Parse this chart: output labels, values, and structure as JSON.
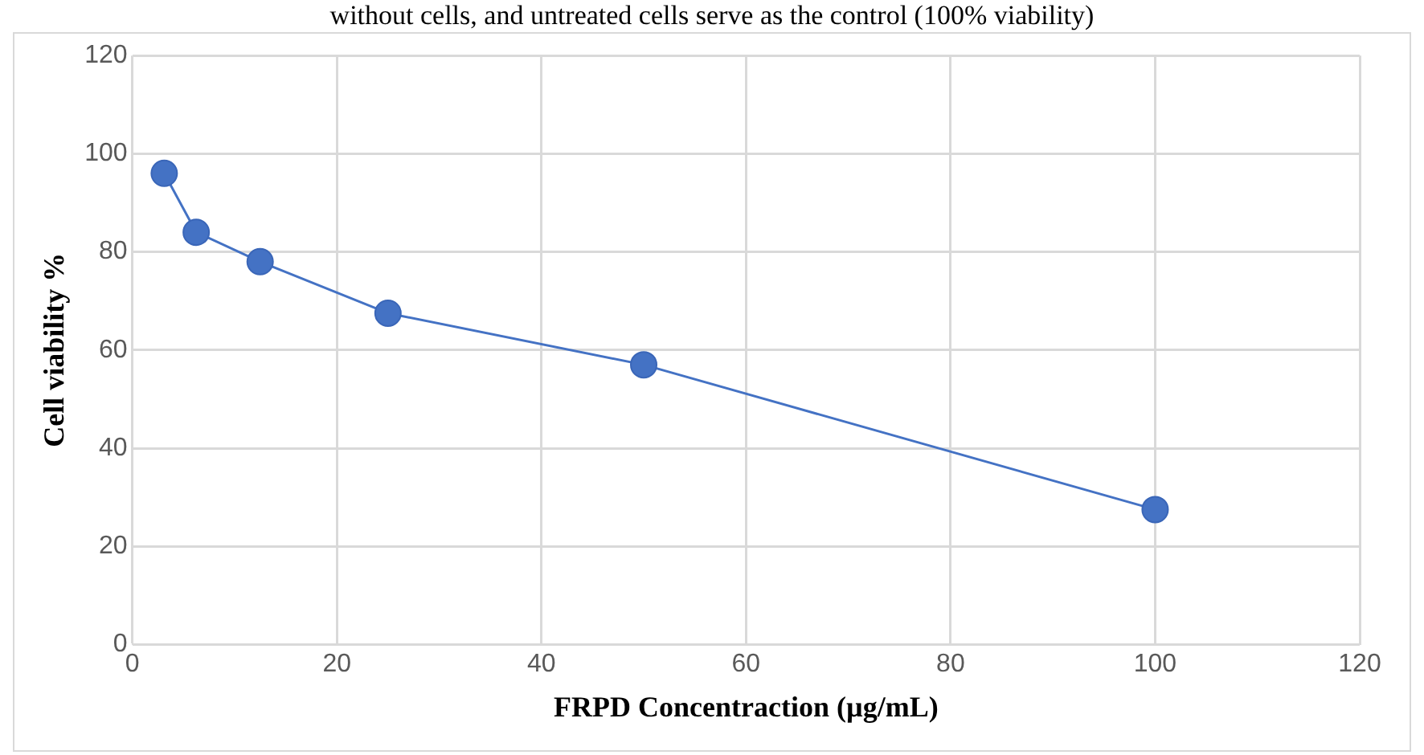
{
  "chart_data": {
    "type": "line",
    "title": "without cells, and untreated cells serve as the control (100% viability)",
    "xlabel": "FRPD Concentraction (µg/mL)",
    "ylabel": "Cell viability %",
    "x": [
      3.125,
      6.25,
      12.5,
      25,
      50,
      100
    ],
    "series": [
      {
        "color": "#4472c4",
        "values": [
          96,
          84,
          78,
          67.5,
          57,
          27.5
        ]
      }
    ],
    "xlim": [
      0,
      120
    ],
    "xticks": [
      0,
      20,
      40,
      60,
      80,
      100,
      120
    ],
    "ylim": [
      0,
      120
    ],
    "yticks": [
      0,
      20,
      40,
      60,
      80,
      100,
      120
    ],
    "grid": true,
    "legend": false,
    "marker": "circle",
    "line_style": "solid"
  }
}
